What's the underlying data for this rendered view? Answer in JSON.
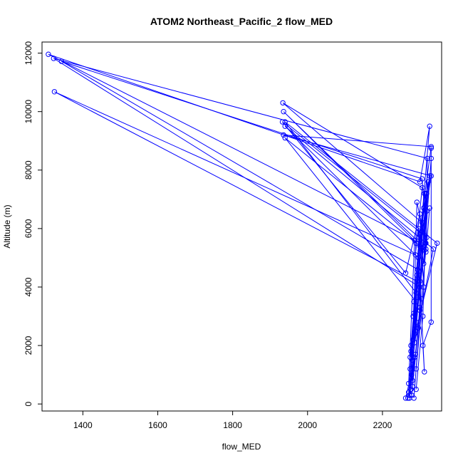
{
  "chart_data": {
    "type": "line",
    "title": "ATOM2 Northeast_Pacific_2 flow_MED",
    "xlabel": "flow_MED",
    "ylabel": "Altitude (m)",
    "xlim": [
      1291,
      2358
    ],
    "ylim": [
      -240,
      12380
    ],
    "x_ticks": [
      1400,
      1600,
      1800,
      2000,
      2200
    ],
    "y_ticks": [
      0,
      2000,
      4000,
      6000,
      8000,
      10000,
      12000
    ],
    "marker": "open-circle",
    "grid": false,
    "legend": "none",
    "color": "#0000ff",
    "series": [
      {
        "points": [
          {
            "x": 2276,
            "y": 500
          },
          {
            "x": 2284,
            "y": 3500
          },
          {
            "x": 2298,
            "y": 5700
          },
          {
            "x": 2330,
            "y": 8800
          },
          {
            "x": 1936,
            "y": 9200
          },
          {
            "x": 2330,
            "y": 7800
          },
          {
            "x": 2306,
            "y": 5900
          },
          {
            "x": 2300,
            "y": 3200
          },
          {
            "x": 2288,
            "y": 1700
          },
          {
            "x": 2272,
            "y": 200
          }
        ]
      },
      {
        "points": [
          {
            "x": 2280,
            "y": 800
          },
          {
            "x": 2292,
            "y": 4200
          },
          {
            "x": 1324,
            "y": 10680
          },
          {
            "x": 2288,
            "y": 5100
          },
          {
            "x": 2306,
            "y": 7400
          },
          {
            "x": 1934,
            "y": 10300
          },
          {
            "x": 2306,
            "y": 6200
          },
          {
            "x": 2316,
            "y": 7200
          },
          {
            "x": 2296,
            "y": 2600
          },
          {
            "x": 2278,
            "y": 300
          }
        ]
      },
      {
        "points": [
          {
            "x": 2278,
            "y": 1000
          },
          {
            "x": 2300,
            "y": 4000
          },
          {
            "x": 1322,
            "y": 11820
          },
          {
            "x": 2320,
            "y": 8400
          },
          {
            "x": 2316,
            "y": 5300
          },
          {
            "x": 1936,
            "y": 10000
          },
          {
            "x": 2316,
            "y": 5200
          },
          {
            "x": 2326,
            "y": 6700
          },
          {
            "x": 2304,
            "y": 3600
          },
          {
            "x": 2284,
            "y": 200
          }
        ]
      },
      {
        "points": [
          {
            "x": 2270,
            "y": 400
          },
          {
            "x": 2294,
            "y": 4600
          },
          {
            "x": 1343,
            "y": 11720
          },
          {
            "x": 2306,
            "y": 7700
          },
          {
            "x": 2318,
            "y": 5700
          },
          {
            "x": 1933,
            "y": 9650
          },
          {
            "x": 2262,
            "y": 4480
          },
          {
            "x": 2300,
            "y": 6500
          },
          {
            "x": 2310,
            "y": 4000
          },
          {
            "x": 2290,
            "y": 1200
          }
        ]
      },
      {
        "points": [
          {
            "x": 2270,
            "y": 700
          },
          {
            "x": 2286,
            "y": 5600
          },
          {
            "x": 1308,
            "y": 11960
          },
          {
            "x": 2300,
            "y": 7600
          },
          {
            "x": 2326,
            "y": 9500
          },
          {
            "x": 2274,
            "y": 1600
          },
          {
            "x": 2316,
            "y": 5500
          },
          {
            "x": 2292,
            "y": 6900
          },
          {
            "x": 2284,
            "y": 3100
          },
          {
            "x": 2272,
            "y": 300
          }
        ]
      },
      {
        "points": [
          {
            "x": 2280,
            "y": 1500
          },
          {
            "x": 2290,
            "y": 3800
          },
          {
            "x": 1940,
            "y": 9650
          },
          {
            "x": 2346,
            "y": 5500
          },
          {
            "x": 2276,
            "y": 1800
          },
          {
            "x": 2318,
            "y": 7200
          },
          {
            "x": 2310,
            "y": 4800
          },
          {
            "x": 2296,
            "y": 6000
          },
          {
            "x": 2300,
            "y": 3300
          },
          {
            "x": 2280,
            "y": 600
          }
        ]
      },
      {
        "points": [
          {
            "x": 2274,
            "y": 1200
          },
          {
            "x": 2296,
            "y": 5000
          },
          {
            "x": 1940,
            "y": 9500
          },
          {
            "x": 2336,
            "y": 5300
          },
          {
            "x": 2286,
            "y": 2100
          },
          {
            "x": 2326,
            "y": 7800
          },
          {
            "x": 2306,
            "y": 6200
          },
          {
            "x": 2322,
            "y": 7600
          },
          {
            "x": 2290,
            "y": 2800
          },
          {
            "x": 2276,
            "y": 500
          }
        ]
      },
      {
        "points": [
          {
            "x": 2290,
            "y": 500
          },
          {
            "x": 2308,
            "y": 3000
          },
          {
            "x": 2314,
            "y": 5500
          },
          {
            "x": 2330,
            "y": 8400
          },
          {
            "x": 2330,
            "y": 8750
          },
          {
            "x": 2330,
            "y": 2800
          },
          {
            "x": 2308,
            "y": 2000
          },
          {
            "x": 2312,
            "y": 1100
          },
          {
            "x": 2300,
            "y": 4200
          },
          {
            "x": 2282,
            "y": 2200
          }
        ]
      },
      {
        "points": [
          {
            "x": 2282,
            "y": 3000
          },
          {
            "x": 2300,
            "y": 5400
          },
          {
            "x": 2312,
            "y": 7200
          },
          {
            "x": 2318,
            "y": 6600
          },
          {
            "x": 2286,
            "y": 2400
          },
          {
            "x": 2300,
            "y": 5800
          },
          {
            "x": 2292,
            "y": 4400
          },
          {
            "x": 2276,
            "y": 2000
          },
          {
            "x": 2286,
            "y": 1600
          },
          {
            "x": 2268,
            "y": 200
          }
        ]
      },
      {
        "points": [
          {
            "x": 2290,
            "y": 5500
          },
          {
            "x": 1940,
            "y": 9100
          },
          {
            "x": 2290,
            "y": 3500
          },
          {
            "x": 2310,
            "y": 6700
          },
          {
            "x": 2298,
            "y": 4400
          },
          {
            "x": 2280,
            "y": 1200
          },
          {
            "x": 2262,
            "y": 200
          }
        ]
      }
    ]
  }
}
